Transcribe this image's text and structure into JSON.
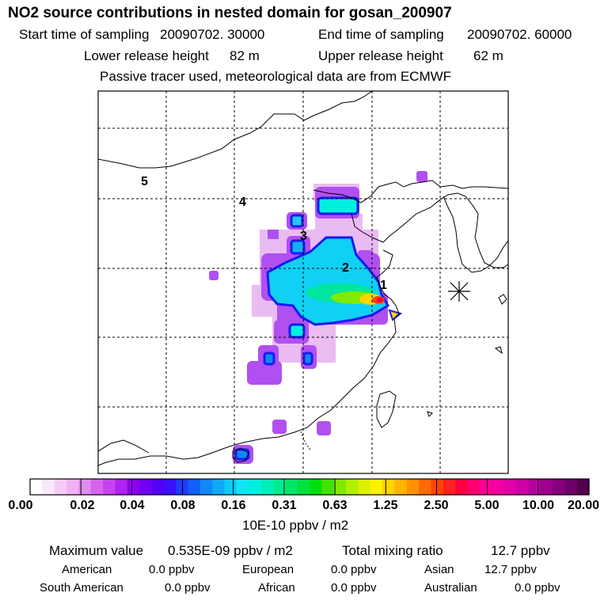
{
  "title": "NO2 source contributions in nested domain for gosan_200907",
  "header": {
    "start_label": "Start time of sampling",
    "start_value": "20090702. 30000",
    "end_label": "End time of sampling",
    "end_value": "20090702. 60000",
    "lower_label": "Lower release height",
    "lower_value": "82 m",
    "upper_label": "Upper release height",
    "upper_value": "62 m",
    "note": "Passive tracer used, meteorological data are from ECMWF"
  },
  "map": {
    "region_labels": [
      "1",
      "2",
      "3",
      "4",
      "5"
    ],
    "receptor_marker": "asterisk-receptor-gosan"
  },
  "colorbar": {
    "labels": [
      "0.00",
      "0.02",
      "0.04",
      "0.08",
      "0.16",
      "0.31",
      "0.63",
      "1.25",
      "2.50",
      "5.00",
      "10.00",
      "20.00"
    ],
    "colors": [
      "#ffffff",
      "#fbe6fb",
      "#f5ccf7",
      "#eeb2f4",
      "#e08cf0",
      "#d466ee",
      "#c644ee",
      "#b022ee",
      "#9000f0",
      "#7000f2",
      "#5400f6",
      "#3a10f8",
      "#1e3cfa",
      "#1060fa",
      "#1088f8",
      "#10a8f6",
      "#10c8f4",
      "#10e6f2",
      "#00f0e0",
      "#00eeb8",
      "#00ec90",
      "#00e668",
      "#00e040",
      "#00de10",
      "#40e400",
      "#80ea00",
      "#b4ee00",
      "#dcf000",
      "#fff000",
      "#ffd400",
      "#ffb400",
      "#ff9000",
      "#ff6a00",
      "#ff4400",
      "#ff2020",
      "#ff0040",
      "#ff0070",
      "#ff0090",
      "#f000a0",
      "#e000a8",
      "#cc00a4",
      "#b4009c",
      "#9c008c",
      "#84007c",
      "#6c0068",
      "#540052"
    ],
    "units": "10E-10 ppbv / m2"
  },
  "stats": {
    "max_label": "Maximum value",
    "max_value": "0.535E-09 ppbv / m2",
    "total_label": "Total mixing ratio",
    "total_value": "12.7 ppbv",
    "sources": [
      {
        "name": "American",
        "value": "0.0 ppbv"
      },
      {
        "name": "European",
        "value": "0.0 ppbv"
      },
      {
        "name": "Asian",
        "value": "12.7 ppbv"
      },
      {
        "name": "South American",
        "value": "0.0 ppbv"
      },
      {
        "name": "African",
        "value": "0.0 ppbv"
      },
      {
        "name": "Australian",
        "value": "0.0 ppbv"
      }
    ]
  }
}
